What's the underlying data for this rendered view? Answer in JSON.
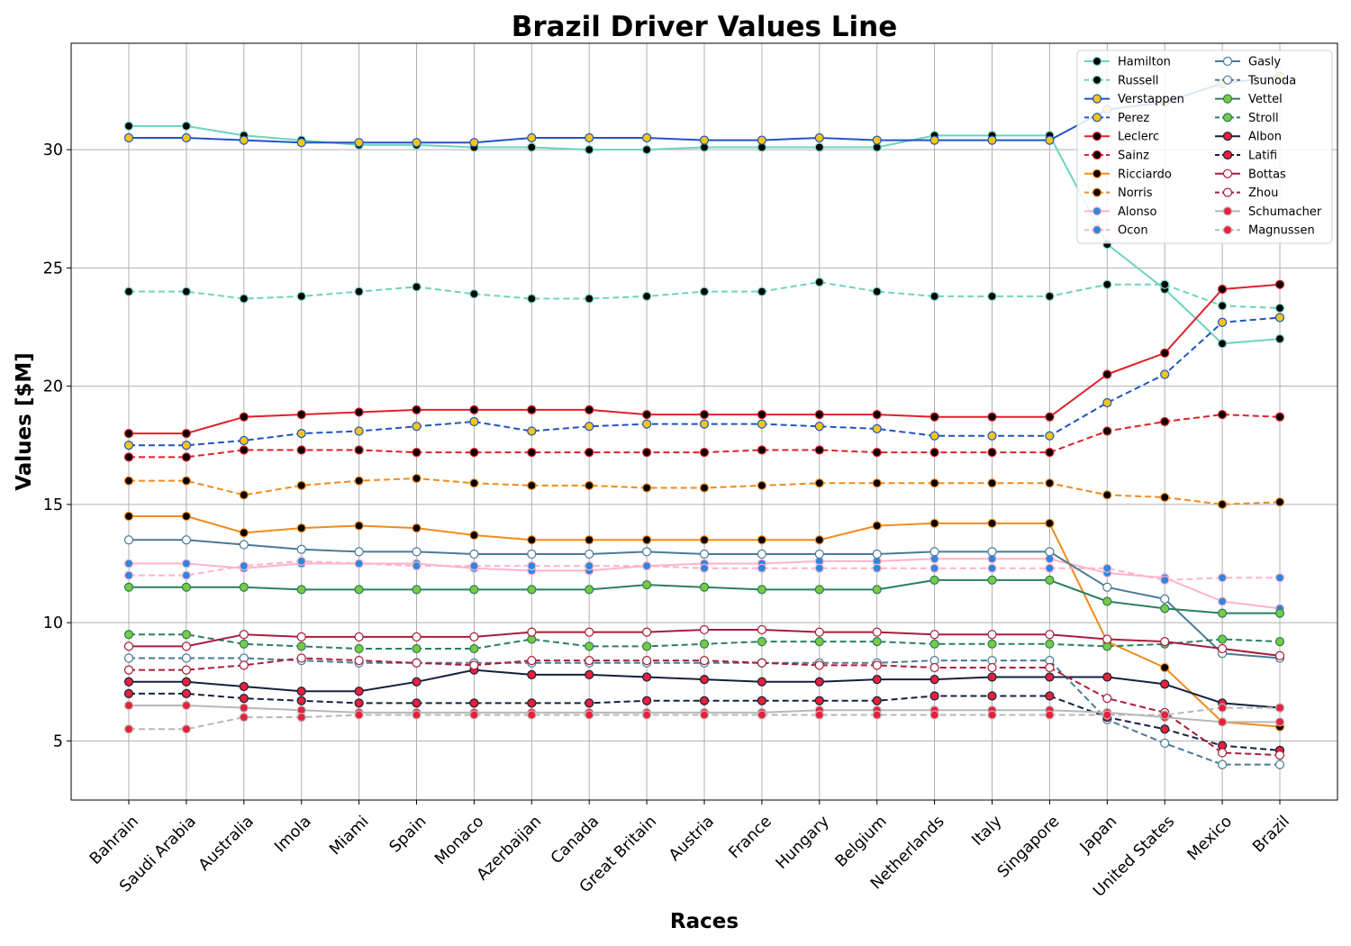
{
  "chart_data": {
    "type": "line",
    "title": "Brazil Driver Values Line",
    "xlabel": "Races",
    "ylabel": "Values [$M]",
    "ylim": [
      2.5,
      34.5
    ],
    "yticks": [
      5,
      10,
      15,
      20,
      25,
      30
    ],
    "grid": true,
    "legend_position": "top-right",
    "legend_columns": 2,
    "categories": [
      "Bahrain",
      "Saudi Arabia",
      "Australia",
      "Imola",
      "Miami",
      "Spain",
      "Monaco",
      "Azerbaijan",
      "Canada",
      "Great Britain",
      "Austria",
      "France",
      "Hungary",
      "Belgium",
      "Netherlands",
      "Italy",
      "Singapore",
      "Japan",
      "United States",
      "Mexico",
      "Brazil"
    ],
    "series": [
      {
        "name": "Hamilton",
        "color": "#6fd3bd",
        "dash": false,
        "marker_fill": "#000000",
        "marker_edge": "#6fd3bd",
        "values": [
          31,
          31,
          30.6,
          30.4,
          30.2,
          30.2,
          30.1,
          30.1,
          30,
          30,
          30.1,
          30.1,
          30.1,
          30.1,
          30.6,
          30.6,
          30.6,
          26,
          24.1,
          21.8,
          22
        ]
      },
      {
        "name": "Russell",
        "color": "#6fd3bd",
        "dash": true,
        "marker_fill": "#000000",
        "marker_edge": "#6fd3bd",
        "values": [
          24,
          24,
          23.7,
          23.8,
          24,
          24.2,
          23.9,
          23.7,
          23.7,
          23.8,
          24,
          24,
          24.4,
          24,
          23.8,
          23.8,
          23.8,
          24.3,
          24.3,
          23.4,
          23.3
        ]
      },
      {
        "name": "Verstappen",
        "color": "#1f55c0",
        "dash": false,
        "marker_fill": "#f5c518",
        "marker_edge": "#1f55c0",
        "values": [
          30.5,
          30.5,
          30.4,
          30.3,
          30.3,
          30.3,
          30.3,
          30.5,
          30.5,
          30.5,
          30.4,
          30.4,
          30.5,
          30.4,
          30.4,
          30.4,
          30.4,
          31.7,
          32,
          32.8,
          33.1
        ]
      },
      {
        "name": "Perez",
        "color": "#1f55c0",
        "dash": true,
        "marker_fill": "#f5c518",
        "marker_edge": "#1f55c0",
        "values": [
          17.5,
          17.5,
          17.7,
          18,
          18.1,
          18.3,
          18.5,
          18.1,
          18.3,
          18.4,
          18.4,
          18.4,
          18.3,
          18.2,
          17.9,
          17.9,
          17.9,
          19.3,
          20.5,
          22.7,
          22.9
        ]
      },
      {
        "name": "Leclerc",
        "color": "#e0202a",
        "dash": false,
        "marker_fill": "#000000",
        "marker_edge": "#e0202a",
        "values": [
          18,
          18,
          18.7,
          18.8,
          18.9,
          19,
          19,
          19,
          19,
          18.8,
          18.8,
          18.8,
          18.8,
          18.8,
          18.7,
          18.7,
          18.7,
          20.5,
          21.4,
          24.1,
          24.3
        ]
      },
      {
        "name": "Sainz",
        "color": "#e0202a",
        "dash": true,
        "marker_fill": "#000000",
        "marker_edge": "#e0202a",
        "values": [
          17,
          17,
          17.3,
          17.3,
          17.3,
          17.2,
          17.2,
          17.2,
          17.2,
          17.2,
          17.2,
          17.3,
          17.3,
          17.2,
          17.2,
          17.2,
          17.2,
          18.1,
          18.5,
          18.8,
          18.7
        ]
      },
      {
        "name": "Ricciardo",
        "color": "#f28a1d",
        "dash": false,
        "marker_fill": "#000000",
        "marker_edge": "#f28a1d",
        "values": [
          14.5,
          14.5,
          13.8,
          14,
          14.1,
          14,
          13.7,
          13.5,
          13.5,
          13.5,
          13.5,
          13.5,
          13.5,
          14.1,
          14.2,
          14.2,
          14.2,
          9.2,
          8.1,
          5.8,
          5.6
        ]
      },
      {
        "name": "Norris",
        "color": "#f28a1d",
        "dash": true,
        "marker_fill": "#000000",
        "marker_edge": "#f28a1d",
        "values": [
          16,
          16,
          15.4,
          15.8,
          16,
          16.1,
          15.9,
          15.8,
          15.8,
          15.7,
          15.7,
          15.8,
          15.9,
          15.9,
          15.9,
          15.9,
          15.9,
          15.4,
          15.3,
          15,
          15.1
        ]
      },
      {
        "name": "Alonso",
        "color": "#ffb3c8",
        "dash": false,
        "marker_fill": "#2e86de",
        "marker_edge": "#ffb3c8",
        "values": [
          12.5,
          12.5,
          12.3,
          12.5,
          12.5,
          12.5,
          12.3,
          12.2,
          12.2,
          12.4,
          12.5,
          12.5,
          12.6,
          12.6,
          12.7,
          12.7,
          12.7,
          12.1,
          11.9,
          10.9,
          10.6
        ]
      },
      {
        "name": "Ocon",
        "color": "#ffb3c8",
        "dash": true,
        "marker_fill": "#2e86de",
        "marker_edge": "#ffb3c8",
        "values": [
          12,
          12,
          12.4,
          12.6,
          12.5,
          12.4,
          12.4,
          12.4,
          12.4,
          12.4,
          12.3,
          12.3,
          12.3,
          12.3,
          12.3,
          12.3,
          12.3,
          12.3,
          11.8,
          11.9,
          11.9
        ]
      },
      {
        "name": "Gasly",
        "color": "#4a7a96",
        "dash": false,
        "marker_fill": "#ffffff",
        "marker_edge": "#4a7a96",
        "values": [
          13.5,
          13.5,
          13.3,
          13.1,
          13,
          13,
          12.9,
          12.9,
          12.9,
          13,
          12.9,
          12.9,
          12.9,
          12.9,
          13,
          13,
          13,
          11.5,
          11,
          8.7,
          8.5
        ]
      },
      {
        "name": "Tsunoda",
        "color": "#4a7a96",
        "dash": true,
        "marker_fill": "#ffffff",
        "marker_edge": "#4a7a96",
        "values": [
          8.5,
          8.5,
          8.5,
          8.4,
          8.3,
          8.3,
          8.3,
          8.3,
          8.3,
          8.3,
          8.3,
          8.3,
          8.3,
          8.3,
          8.4,
          8.4,
          8.4,
          5.9,
          4.9,
          4,
          4
        ]
      },
      {
        "name": "Vettel",
        "color": "#2a7f5f",
        "dash": false,
        "marker_fill": "#7ac943",
        "marker_edge": "#2a7f5f",
        "values": [
          11.5,
          11.5,
          11.5,
          11.4,
          11.4,
          11.4,
          11.4,
          11.4,
          11.4,
          11.6,
          11.5,
          11.4,
          11.4,
          11.4,
          11.8,
          11.8,
          11.8,
          10.9,
          10.6,
          10.4,
          10.4
        ]
      },
      {
        "name": "Stroll",
        "color": "#2a7f5f",
        "dash": true,
        "marker_fill": "#7ac943",
        "marker_edge": "#2a7f5f",
        "values": [
          9.5,
          9.5,
          9.1,
          9,
          8.9,
          8.9,
          8.9,
          9.3,
          9,
          9,
          9.1,
          9.2,
          9.2,
          9.2,
          9.1,
          9.1,
          9.1,
          9,
          9.1,
          9.3,
          9.2
        ]
      },
      {
        "name": "Albon",
        "color": "#14213d",
        "dash": false,
        "marker_fill": "#e8203a",
        "marker_edge": "#14213d",
        "values": [
          7.5,
          7.5,
          7.3,
          7.1,
          7.1,
          7.5,
          8,
          7.8,
          7.8,
          7.7,
          7.6,
          7.5,
          7.5,
          7.6,
          7.6,
          7.7,
          7.7,
          7.7,
          7.4,
          6.6,
          6.4
        ]
      },
      {
        "name": "Latifi",
        "color": "#14213d",
        "dash": true,
        "marker_fill": "#e8203a",
        "marker_edge": "#14213d",
        "values": [
          7,
          7,
          6.8,
          6.7,
          6.6,
          6.6,
          6.6,
          6.6,
          6.6,
          6.7,
          6.7,
          6.7,
          6.7,
          6.7,
          6.9,
          6.9,
          6.9,
          6,
          5.5,
          4.8,
          4.6
        ]
      },
      {
        "name": "Bottas",
        "color": "#a91d3a",
        "dash": false,
        "marker_fill": "#ffffff",
        "marker_edge": "#a91d3a",
        "values": [
          9,
          9,
          9.5,
          9.4,
          9.4,
          9.4,
          9.4,
          9.6,
          9.6,
          9.6,
          9.7,
          9.7,
          9.6,
          9.6,
          9.5,
          9.5,
          9.5,
          9.3,
          9.2,
          8.9,
          8.6
        ]
      },
      {
        "name": "Zhou",
        "color": "#a91d3a",
        "dash": true,
        "marker_fill": "#ffffff",
        "marker_edge": "#a91d3a",
        "values": [
          8,
          8,
          8.2,
          8.5,
          8.4,
          8.3,
          8.2,
          8.4,
          8.4,
          8.4,
          8.4,
          8.3,
          8.2,
          8.2,
          8.1,
          8.1,
          8.1,
          6.8,
          6.2,
          4.5,
          4.4
        ]
      },
      {
        "name": "Schumacher",
        "color": "#b8b8b8",
        "dash": false,
        "marker_fill": "#e8203a",
        "marker_edge": "#b8b8b8",
        "values": [
          6.5,
          6.5,
          6.4,
          6.3,
          6.2,
          6.2,
          6.2,
          6.2,
          6.2,
          6.2,
          6.2,
          6.2,
          6.3,
          6.3,
          6.3,
          6.3,
          6.3,
          6.2,
          6,
          5.8,
          5.8
        ]
      },
      {
        "name": "Magnussen",
        "color": "#b8b8b8",
        "dash": true,
        "marker_fill": "#e8203a",
        "marker_edge": "#b8b8b8",
        "values": [
          5.5,
          5.5,
          6,
          6,
          6.1,
          6.1,
          6.1,
          6.1,
          6.1,
          6.1,
          6.1,
          6.1,
          6.1,
          6.1,
          6.1,
          6.1,
          6.1,
          6.1,
          6.1,
          6.4,
          6.4
        ]
      }
    ]
  }
}
